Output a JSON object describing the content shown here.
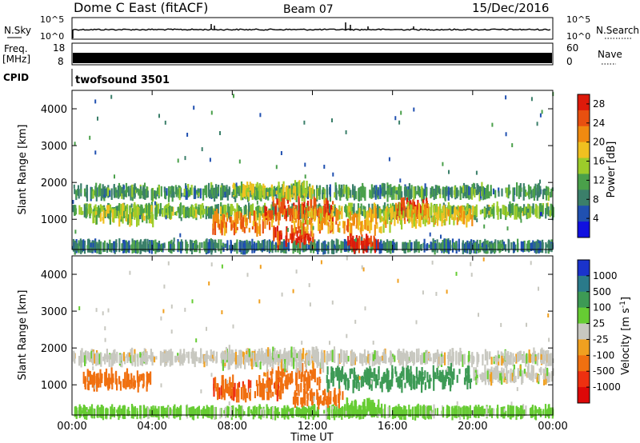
{
  "header": {
    "station": "Dome C East (fitACF)",
    "beam": "Beam 07",
    "date": "15/Dec/2016"
  },
  "panels": {
    "nsky": {
      "label": "N.Sky",
      "right_label": "N.Search",
      "tick_top": "10^5",
      "tick_bottom": "10^0",
      "tick_top_right": "10^5",
      "tick_bottom_right": "10^0"
    },
    "freq": {
      "label_line1": "Freq.",
      "label_line2": "[MHz]",
      "right_label": "Nave",
      "left_ticks": [
        "18",
        "8"
      ],
      "right_ticks": [
        "60",
        "0"
      ]
    },
    "cpid": {
      "label": "CPID",
      "text": "twofsound 3501"
    }
  },
  "colors": {
    "power": [
      "#1010e0",
      "#2050b0",
      "#3b7f6a",
      "#4aa04a",
      "#9ccc2a",
      "#f0c020",
      "#f08a10",
      "#e85010",
      "#dd1a0a"
    ],
    "velocity": [
      "#1a33cc",
      "#2a7a8a",
      "#3d9a55",
      "#66cc33",
      "#c8c8c0",
      "#f0a020",
      "#f07010",
      "#ee3010",
      "#dd0808"
    ]
  },
  "chart_data": [
    {
      "type": "heatmap",
      "name": "power",
      "ylabel": "Slant Range [km]",
      "xlabel": "",
      "x_ticks": [
        "00:00",
        "04:00",
        "08:00",
        "12:00",
        "16:00",
        "20:00",
        "00:00"
      ],
      "y_ticks": [
        "1000",
        "2000",
        "3000",
        "4000"
      ],
      "xlim_hours": [
        0,
        24
      ],
      "ylim_km": [
        180,
        4500
      ],
      "colorbar": {
        "label": "Power [dB]",
        "ticks": [
          "4",
          "8",
          "12",
          "16",
          "20",
          "24",
          "28"
        ],
        "range": [
          0,
          30
        ]
      },
      "bands": [
        {
          "t": [
            0.0,
            24.0
          ],
          "r": [
            220,
            300
          ],
          "value": 8
        },
        {
          "t": [
            0.0,
            24.0
          ],
          "r": [
            1150,
            1300
          ],
          "value": 13
        },
        {
          "t": [
            0.0,
            24.0
          ],
          "r": [
            1650,
            1820
          ],
          "value": 10
        },
        {
          "t": [
            1.0,
            4.0
          ],
          "r": [
            950,
            1300
          ],
          "value": 15
        },
        {
          "t": [
            7.0,
            10.0
          ],
          "r": [
            700,
            1100
          ],
          "value": 22
        },
        {
          "t": [
            9.5,
            13.0
          ],
          "r": [
            1000,
            1500
          ],
          "value": 25
        },
        {
          "t": [
            10.0,
            12.0
          ],
          "r": [
            350,
            700
          ],
          "value": 27
        },
        {
          "t": [
            11.0,
            16.0
          ],
          "r": [
            700,
            1200
          ],
          "value": 20
        },
        {
          "t": [
            13.7,
            15.3
          ],
          "r": [
            230,
            460
          ],
          "value": 29
        },
        {
          "t": [
            16.0,
            17.8
          ],
          "r": [
            1100,
            1500
          ],
          "value": 27
        },
        {
          "t": [
            15.5,
            20.0
          ],
          "r": [
            900,
            1350
          ],
          "value": 18
        },
        {
          "t": [
            8.0,
            12.0
          ],
          "r": [
            1650,
            1900
          ],
          "value": 16
        }
      ]
    },
    {
      "type": "heatmap",
      "name": "velocity",
      "ylabel": "Slant Range [km]",
      "xlabel": "Time UT",
      "x_ticks": [
        "00:00",
        "04:00",
        "08:00",
        "12:00",
        "16:00",
        "20:00",
        "00:00"
      ],
      "y_ticks": [
        "1000",
        "2000",
        "3000",
        "4000"
      ],
      "xlim_hours": [
        0,
        24
      ],
      "ylim_km": [
        180,
        4500
      ],
      "colorbar": {
        "label": "Velocity [m s^-1]",
        "ticks": [
          "1000",
          "500",
          "100",
          "25",
          "-25",
          "-100",
          "-500",
          "-1000"
        ]
      },
      "bands": [
        {
          "t": [
            0.0,
            24.0
          ],
          "r": [
            220,
            300
          ],
          "value": 50
        },
        {
          "t": [
            0.0,
            24.0
          ],
          "r": [
            1650,
            1820
          ],
          "value": 0
        },
        {
          "t": [
            0.5,
            4.0
          ],
          "r": [
            950,
            1300
          ],
          "value": -300
        },
        {
          "t": [
            7.0,
            10.5
          ],
          "r": [
            700,
            1150
          ],
          "value": -400
        },
        {
          "t": [
            9.5,
            12.5
          ],
          "r": [
            900,
            1450
          ],
          "value": -300
        },
        {
          "t": [
            11.0,
            13.5
          ],
          "r": [
            500,
            800
          ],
          "value": -200
        },
        {
          "t": [
            12.5,
            20.0
          ],
          "r": [
            950,
            1400
          ],
          "value": 300
        },
        {
          "t": [
            13.6,
            15.3
          ],
          "r": [
            230,
            500
          ],
          "value": 60
        },
        {
          "t": [
            7.5,
            12.5
          ],
          "r": [
            1500,
            1900
          ],
          "value": 0
        },
        {
          "t": [
            20.0,
            24.0
          ],
          "r": [
            1150,
            1400
          ],
          "value": 0
        }
      ]
    }
  ]
}
